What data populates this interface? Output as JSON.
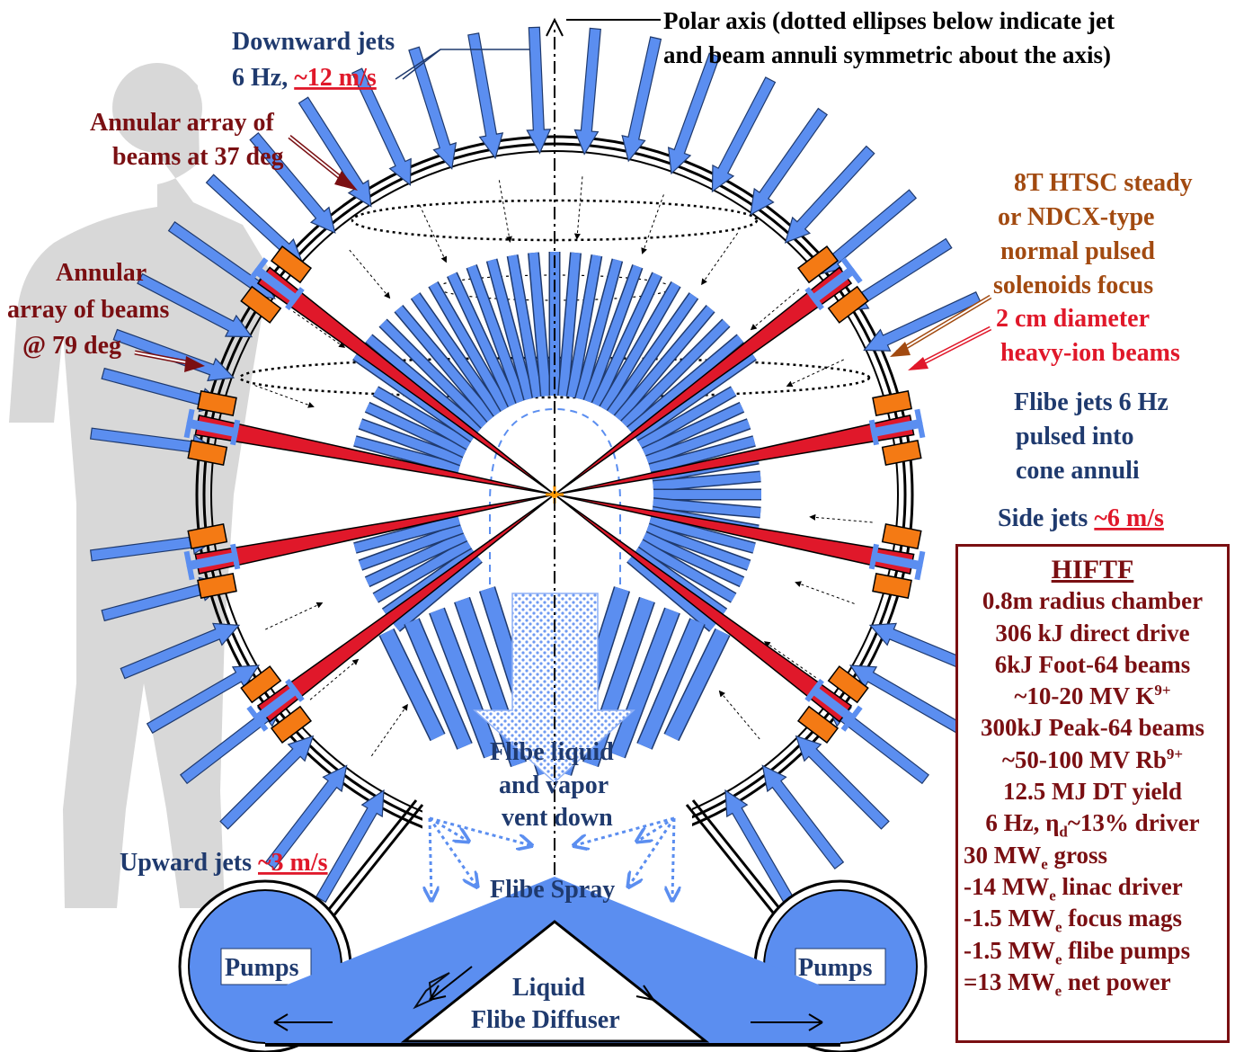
{
  "labels": {
    "polar_axis_1": "Polar axis (dotted ellipses below indicate jet",
    "polar_axis_2": "and beam annuli symmetric about the axis)",
    "down_jets_1": "Downward jets",
    "down_jets_2a": "6 Hz, ",
    "down_jets_2b": "~12 m/s",
    "annular37_1": "Annular array of",
    "annular37_2": "beams at 37 deg",
    "annular79_1": "Annular",
    "annular79_2": "array of beams",
    "annular79_3": "@ 79 deg",
    "htsc_1": "8T HTSC steady",
    "htsc_2": "or NDCX-type",
    "htsc_3": "normal pulsed",
    "htsc_4": "solenoids focus",
    "htsc_5": "2 cm diameter",
    "htsc_6": "heavy-ion beams",
    "flibe_jets_1": "Flibe jets 6 Hz",
    "flibe_jets_2": "pulsed into",
    "flibe_jets_3": "cone annuli",
    "side_jets_a": "Side jets ",
    "side_jets_b": "~6 m/s",
    "vent_1": "Flibe liquid",
    "vent_2": "and vapor",
    "vent_3": "vent down",
    "up_jets_a": "Upward jets ",
    "up_jets_b": "~3 m/s",
    "spray": "Flibe Spray",
    "pumps_left": "Pumps",
    "pumps_right": "Pumps",
    "diffuser_1": "Liquid",
    "diffuser_2": "Flibe Diffuser"
  },
  "hiftf": {
    "title": "HIFTF",
    "line1": "0.8m radius chamber",
    "line2": "306 kJ direct drive",
    "line3": "6kJ Foot-64 beams",
    "line4_main": "~10-20 MV K",
    "line4_sup": "9+",
    "line5": "300kJ Peak-64 beams",
    "line6_main": "~50-100 MV Rb",
    "line6_sup": "9+",
    "line7": "12.5 MJ DT yield",
    "line8_a": "6 Hz, η",
    "line8_sub": "d",
    "line8_b": "~13% driver",
    "line9_a": "30 MW",
    "line9_sub": "e",
    "line9_b": " gross",
    "line10_a": "-14 MW",
    "line10_sub": "e",
    "line10_b": " linac driver",
    "line11_a": "-1.5 MW",
    "line11_sub": "e",
    "line11_b": " focus mags",
    "line12_a": "-1.5 MW",
    "line12_sub": "e",
    "line12_b": " flibe pumps",
    "line13_a": "=13 MW",
    "line13_sub": "e",
    "line13_b": " net power"
  },
  "colors": {
    "jet_blue": "#5b8ef0",
    "jet_outline": "#1f3a6e",
    "beam_red": "#e0182a",
    "magnet_orange": "#f47a14",
    "navy_text": "#1f3a6e",
    "maroon_text": "#7a0f12",
    "brown_text": "#a24a10",
    "red_text": "#e0182a",
    "silhouette": "#d8d8d8",
    "target_orange": "#ff9900"
  }
}
